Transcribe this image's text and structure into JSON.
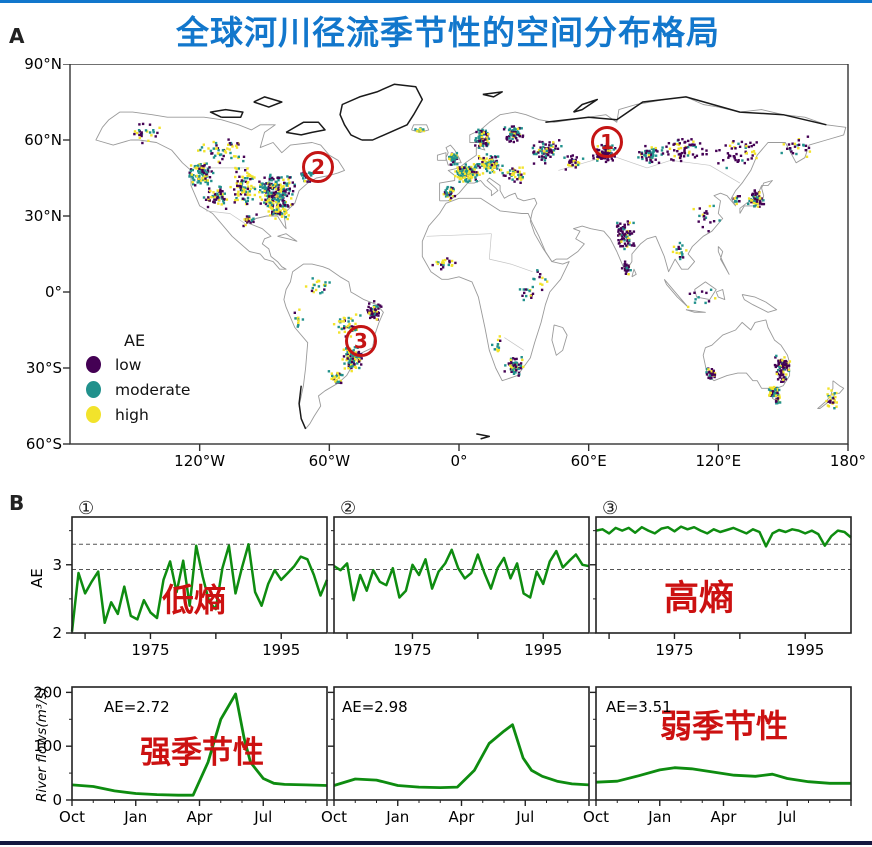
{
  "page": {
    "top_bar_color": "#1277cc",
    "bottom_bar_color": "#15173f"
  },
  "header": {
    "title": "全球河川径流季节性的空间分布格局",
    "title_color": "#1277cc"
  },
  "panel_a": {
    "label": "A",
    "map": {
      "projection": "equirectangular",
      "lon_range": [
        -180,
        180
      ],
      "lat_range": [
        -60,
        90
      ],
      "x_ticks": [
        {
          "label": "120°W",
          "lon": -120
        },
        {
          "label": "60°W",
          "lon": -60
        },
        {
          "label": "0°",
          "lon": 0
        },
        {
          "label": "60°E",
          "lon": 60
        },
        {
          "label": "120°E",
          "lon": 120
        },
        {
          "label": "180°",
          "lon": 180
        }
      ],
      "y_ticks": [
        {
          "label": "90°N",
          "lat": 90
        },
        {
          "label": "60°N",
          "lat": 60
        },
        {
          "label": "30°N",
          "lat": 30
        },
        {
          "label": "0°",
          "lat": 0
        },
        {
          "label": "30°S",
          "lat": -30
        },
        {
          "label": "60°S",
          "lat": -60
        }
      ],
      "legend": {
        "title": "AE",
        "items": [
          {
            "label": "low",
            "color": "#440154"
          },
          {
            "label": "moderate",
            "color": "#21918c"
          },
          {
            "label": "high",
            "color": "#f2e32b"
          }
        ]
      },
      "markers": [
        {
          "label": "1",
          "lon": 68.5,
          "lat": 59.2
        },
        {
          "label": "2",
          "lon": -65.2,
          "lat": 49.3
        },
        {
          "label": "3",
          "lon": -45.4,
          "lat": -19.4
        }
      ]
    }
  },
  "panel_b": {
    "label": "B",
    "ae_axis_label": "AE",
    "flow_axis_label": "River flows(m³/s)",
    "markers": [
      "①",
      "②",
      "③"
    ],
    "red_notes": [
      {
        "text": "低熵"
      },
      {
        "text": "高熵"
      },
      {
        "text": "强季节性"
      },
      {
        "text": "弱季节性"
      }
    ],
    "ae_values": [
      "AE=2.72",
      "AE=2.98",
      "AE=3.51"
    ]
  },
  "chart_data": [
    {
      "id": "world-map-scatter",
      "type": "scatter",
      "categories": [
        "low",
        "moderate",
        "high"
      ],
      "colors": {
        "low": "#440154",
        "moderate": "#21918c",
        "high": "#f2e32b"
      },
      "clusters": [
        [
          -120,
          47,
          6,
          6,
          90,
          0.2,
          0.55
        ],
        [
          -113,
          38,
          7,
          5,
          60,
          0.45,
          0.2
        ],
        [
          -100,
          42,
          6,
          8,
          85,
          0.3,
          0.25
        ],
        [
          -85,
          40,
          9,
          7,
          210,
          0.35,
          0.45
        ],
        [
          -84,
          33,
          6,
          4,
          60,
          0.2,
          0.25
        ],
        [
          -110,
          56,
          12,
          6,
          55,
          0.3,
          0.3
        ],
        [
          -146,
          63,
          8,
          5,
          25,
          0.4,
          0.3
        ],
        [
          -98,
          29,
          4,
          3,
          25,
          0.5,
          0.2
        ],
        [
          -71,
          46,
          4,
          3,
          30,
          0.4,
          0.4
        ],
        [
          -19,
          64.5,
          2.5,
          1.2,
          12,
          0.1,
          0.45
        ],
        [
          -3,
          53,
          2.5,
          3,
          40,
          0.15,
          0.55
        ],
        [
          3,
          47.5,
          6,
          4,
          130,
          0.15,
          0.4
        ],
        [
          -5,
          39.5,
          3,
          3,
          35,
          0.35,
          0.45
        ],
        [
          14,
          51,
          6,
          4,
          85,
          0.2,
          0.35
        ],
        [
          10,
          61,
          4,
          4,
          75,
          0.45,
          0.4
        ],
        [
          25,
          63,
          5,
          4,
          55,
          0.5,
          0.35
        ],
        [
          25,
          47,
          6,
          4,
          40,
          0.3,
          0.25
        ],
        [
          40,
          56,
          8,
          6,
          65,
          0.45,
          0.3
        ],
        [
          52,
          52,
          6,
          4,
          30,
          0.4,
          0.3
        ],
        [
          67,
          55,
          6,
          4,
          75,
          0.7,
          0.2
        ],
        [
          88,
          55,
          6,
          4,
          55,
          0.35,
          0.5
        ],
        [
          105,
          57,
          15,
          6,
          60,
          0.7,
          0.15
        ],
        [
          130,
          55,
          12,
          6,
          50,
          0.65,
          0.2
        ],
        [
          155,
          58,
          8,
          5,
          25,
          0.5,
          0.3
        ],
        [
          137,
          37,
          4,
          4,
          55,
          0.35,
          0.3
        ],
        [
          128,
          37,
          2,
          2,
          12,
          0.4,
          0.3
        ],
        [
          115,
          30,
          8,
          6,
          20,
          0.5,
          0.25
        ],
        [
          76,
          23,
          5,
          6,
          70,
          0.75,
          0.15
        ],
        [
          77,
          10,
          2.5,
          3,
          25,
          0.7,
          0.2
        ],
        [
          102,
          16,
          5,
          5,
          18,
          0.3,
          0.4
        ],
        [
          112,
          -1,
          8,
          5,
          12,
          0.3,
          0.4
        ],
        [
          -40,
          -7,
          4,
          4,
          55,
          0.75,
          0.15
        ],
        [
          -52,
          -13,
          7,
          6,
          45,
          0.15,
          0.25
        ],
        [
          -50,
          -26,
          5,
          5,
          95,
          0.3,
          0.4
        ],
        [
          -57,
          -33,
          4,
          3,
          30,
          0.25,
          0.4
        ],
        [
          -66,
          3,
          6,
          4,
          20,
          0.2,
          0.4
        ],
        [
          -75,
          -10,
          3,
          5,
          12,
          0.3,
          0.3
        ],
        [
          -8,
          12,
          8,
          3,
          20,
          0.35,
          0.25
        ],
        [
          32,
          0,
          5,
          6,
          15,
          0.3,
          0.5
        ],
        [
          25,
          -29,
          5,
          4,
          55,
          0.55,
          0.3
        ],
        [
          17,
          -20,
          4,
          4,
          12,
          0.3,
          0.3
        ],
        [
          37,
          6,
          4,
          5,
          12,
          0.4,
          0.3
        ],
        [
          149,
          -30,
          4,
          6,
          85,
          0.6,
          0.2
        ],
        [
          145,
          -39,
          3,
          2.5,
          50,
          0.35,
          0.35
        ],
        [
          116,
          -32,
          2.5,
          2.5,
          30,
          0.55,
          0.25
        ],
        [
          147,
          -42.5,
          1.5,
          1.5,
          15,
          0.3,
          0.4
        ],
        [
          172,
          -41,
          3,
          5,
          25,
          0.2,
          0.35
        ]
      ]
    },
    {
      "id": "ae-series-1",
      "type": "line",
      "marker": "①",
      "x_start": 1963,
      "x_end": 2002,
      "x_ticks_labeled": [
        1975,
        1995
      ],
      "x_ticks_minor": [
        1965,
        1985
      ],
      "ylim": [
        2,
        3.7
      ],
      "y_ticks": [
        2,
        3
      ],
      "y_ticks_minor": [
        2.5,
        3.5
      ],
      "dashed_lines": [
        2.93,
        3.3
      ],
      "ylabel": "AE",
      "annotation": "低熵",
      "values": [
        2.02,
        2.88,
        2.58,
        2.75,
        2.9,
        2.15,
        2.45,
        2.28,
        2.68,
        2.25,
        2.2,
        2.48,
        2.3,
        2.22,
        2.78,
        3.05,
        2.6,
        3.06,
        2.4,
        3.28,
        2.82,
        2.45,
        2.35,
        2.95,
        3.28,
        2.58,
        2.96,
        3.3,
        2.6,
        2.4,
        2.72,
        2.92,
        2.78,
        2.88,
        2.98,
        3.12,
        3.08,
        2.85,
        2.55,
        2.78
      ]
    },
    {
      "id": "ae-series-2",
      "type": "line",
      "marker": "②",
      "x_start": 1963,
      "x_end": 2002,
      "x_ticks_labeled": [
        1975,
        1995
      ],
      "x_ticks_minor": [
        1965,
        1985
      ],
      "ylim": [
        2,
        3.7
      ],
      "y_ticks": [
        2,
        3
      ],
      "y_ticks_minor": [
        2.5,
        3.5
      ],
      "dashed_lines": [
        2.93,
        3.3
      ],
      "ylabel": "",
      "annotation": "",
      "values": [
        2.98,
        2.92,
        3.02,
        2.48,
        2.85,
        2.62,
        2.92,
        2.75,
        2.7,
        2.95,
        2.52,
        2.62,
        3.0,
        2.85,
        3.08,
        2.65,
        2.9,
        3.02,
        3.22,
        2.95,
        2.8,
        2.88,
        3.15,
        2.88,
        2.65,
        2.95,
        3.1,
        2.8,
        3.02,
        2.58,
        2.52,
        2.9,
        2.72,
        3.05,
        3.2,
        2.96,
        3.06,
        3.15,
        3.0,
        2.98
      ]
    },
    {
      "id": "ae-series-3",
      "type": "line",
      "marker": "③",
      "x_start": 1963,
      "x_end": 2002,
      "x_ticks_labeled": [
        1975,
        1995
      ],
      "x_ticks_minor": [
        1965,
        1985
      ],
      "ylim": [
        2,
        3.7
      ],
      "y_ticks": [
        2,
        3
      ],
      "y_ticks_minor": [
        2.5,
        3.5
      ],
      "dashed_lines": [
        2.93,
        3.3
      ],
      "ylabel": "",
      "annotation": "高熵",
      "values": [
        3.5,
        3.52,
        3.46,
        3.54,
        3.5,
        3.54,
        3.47,
        3.55,
        3.5,
        3.46,
        3.53,
        3.55,
        3.49,
        3.56,
        3.52,
        3.55,
        3.5,
        3.46,
        3.52,
        3.48,
        3.51,
        3.54,
        3.5,
        3.46,
        3.52,
        3.48,
        3.27,
        3.46,
        3.51,
        3.48,
        3.52,
        3.5,
        3.46,
        3.5,
        3.45,
        3.28,
        3.42,
        3.5,
        3.48,
        3.4
      ]
    },
    {
      "id": "flow-1",
      "type": "line",
      "x_tick_labels": [
        "Oct",
        "Jan",
        "Apr",
        "Jul"
      ],
      "ylim": [
        0,
        210
      ],
      "y_ticks": [
        0,
        100,
        200
      ],
      "ylabel": "River flows(m³/s)",
      "ae_label": "AE=2.72",
      "annotation": "强季节性",
      "points": [
        [
          0,
          28
        ],
        [
          1,
          25
        ],
        [
          2,
          17
        ],
        [
          3,
          12
        ],
        [
          4,
          10
        ],
        [
          5,
          9
        ],
        [
          5.7,
          9
        ],
        [
          6.4,
          70
        ],
        [
          7,
          150
        ],
        [
          7.7,
          197
        ],
        [
          8.1,
          115
        ],
        [
          8.4,
          70
        ],
        [
          9,
          40
        ],
        [
          9.5,
          31
        ],
        [
          10,
          29
        ],
        [
          11,
          28
        ],
        [
          12,
          27
        ]
      ]
    },
    {
      "id": "flow-2",
      "type": "line",
      "x_tick_labels": [
        "Oct",
        "Jan",
        "Apr",
        "Jul"
      ],
      "ylim": [
        0,
        210
      ],
      "y_ticks": [
        0,
        100,
        200
      ],
      "ylabel": "",
      "ae_label": "AE=2.98",
      "annotation": "",
      "points": [
        [
          0,
          27
        ],
        [
          1,
          39
        ],
        [
          2,
          37
        ],
        [
          3,
          27
        ],
        [
          4,
          24
        ],
        [
          5,
          23
        ],
        [
          5.8,
          24
        ],
        [
          6.6,
          55
        ],
        [
          7.3,
          105
        ],
        [
          8,
          128
        ],
        [
          8.4,
          140
        ],
        [
          8.9,
          78
        ],
        [
          9.3,
          55
        ],
        [
          9.8,
          44
        ],
        [
          10.5,
          35
        ],
        [
          11.2,
          30
        ],
        [
          12,
          28
        ]
      ]
    },
    {
      "id": "flow-3",
      "type": "line",
      "x_tick_labels": [
        "Oct",
        "Jan",
        "Apr",
        "Jul"
      ],
      "ylim": [
        0,
        210
      ],
      "y_ticks": [
        0,
        100,
        200
      ],
      "ylabel": "",
      "ae_label": "AE=3.51",
      "annotation": "弱季节性",
      "points": [
        [
          0,
          33
        ],
        [
          1,
          35
        ],
        [
          2,
          45
        ],
        [
          3,
          56
        ],
        [
          3.7,
          60
        ],
        [
          4.5,
          58
        ],
        [
          5.5,
          52
        ],
        [
          6.5,
          46
        ],
        [
          7.5,
          44
        ],
        [
          8.3,
          48
        ],
        [
          9,
          40
        ],
        [
          10,
          34
        ],
        [
          11,
          31
        ],
        [
          12,
          31
        ]
      ]
    }
  ],
  "style": {
    "line_color": "#0e8c10",
    "dash_color": "#555",
    "frame_color": "#222",
    "red": "#cc1111",
    "marker_red": "#c41414"
  }
}
